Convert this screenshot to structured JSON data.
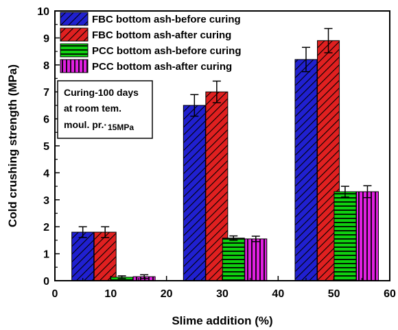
{
  "chart_data": {
    "type": "bar",
    "xlabel": "Slime addition (%)",
    "ylabel": "Cold crushing strength (MPa)",
    "xlim": [
      0,
      60
    ],
    "ylim": [
      0,
      10
    ],
    "xticks": [
      0,
      10,
      20,
      30,
      40,
      50,
      60
    ],
    "yticks": [
      0,
      1,
      2,
      3,
      4,
      5,
      6,
      7,
      8,
      9,
      10
    ],
    "categories": [
      "5",
      "30",
      "50"
    ],
    "group_centers": [
      9,
      29,
      49
    ],
    "legend_position": "top-right",
    "grid": false,
    "series": [
      {
        "name": "FBC bottom ash-before curing",
        "color": "#2020d0",
        "pattern": "diagonal-hatch",
        "center_offset": -4,
        "values": [
          1.8,
          6.5,
          8.2
        ],
        "errors": [
          0.2,
          0.4,
          0.45
        ]
      },
      {
        "name": "FBC bottom ash-after curing",
        "color": "#e02020",
        "pattern": "diagonal-hatch",
        "center_offset": 0,
        "values": [
          1.8,
          7.0,
          8.9
        ],
        "errors": [
          0.2,
          0.4,
          0.45
        ]
      },
      {
        "name": "PCC bottom ash-before curing",
        "color": "#10d010",
        "pattern": "horizontal-lines",
        "center_offset": 3,
        "values": [
          0.13,
          1.58,
          3.3
        ],
        "errors": [
          0.05,
          0.08,
          0.2
        ]
      },
      {
        "name": "PCC bottom ash-after curing",
        "color": "#e020e0",
        "pattern": "vertical-lines",
        "center_offset": 7,
        "values": [
          0.15,
          1.55,
          3.3
        ],
        "errors": [
          0.07,
          0.1,
          0.22
        ]
      }
    ],
    "annotation": {
      "lines": [
        "Curing-100 days",
        "at room tem.",
        "moul. pr.·"
      ],
      "suffix": "15MPa"
    }
  }
}
